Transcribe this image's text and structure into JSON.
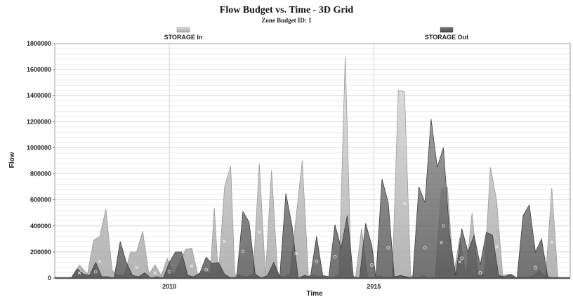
{
  "chart_data": {
    "type": "area",
    "title": "Flow Budget vs. Time - 3D Grid",
    "subtitle": "Zone Budget ID: 1",
    "xlabel": "Time",
    "ylabel": "Flow",
    "xlim": [
      2007.2,
      2019.8
    ],
    "ylim": [
      0,
      1800000
    ],
    "yticks": [
      0,
      200000,
      400000,
      600000,
      800000,
      1000000,
      1200000,
      1400000,
      1600000,
      1800000
    ],
    "xticks": [
      2010,
      2015
    ],
    "grid": true,
    "legend_placement": "top",
    "colors": {
      "storage_in": "#bdbdbd",
      "storage_out": "#5e5e5e"
    },
    "series": [
      {
        "name": "STORAGE In",
        "x": [
          2007.6,
          2007.8,
          2008.0,
          2008.15,
          2008.3,
          2008.45,
          2008.6,
          2008.75,
          2008.9,
          2009.05,
          2009.2,
          2009.35,
          2009.5,
          2009.65,
          2009.8,
          2009.95,
          2010.1,
          2010.25,
          2010.4,
          2010.55,
          2010.7,
          2010.85,
          2011.0,
          2011.1,
          2011.2,
          2011.35,
          2011.5,
          2011.6,
          2011.75,
          2011.9,
          2012.05,
          2012.2,
          2012.35,
          2012.5,
          2012.65,
          2012.8,
          2012.95,
          2013.1,
          2013.25,
          2013.4,
          2013.55,
          2013.7,
          2013.85,
          2014.0,
          2014.15,
          2014.3,
          2014.45,
          2014.55,
          2014.7,
          2014.85,
          2015.0,
          2015.15,
          2015.3,
          2015.45,
          2015.6,
          2015.75,
          2015.9,
          2016.05,
          2016.2,
          2016.35,
          2016.5,
          2016.65,
          2016.8,
          2016.95,
          2017.1,
          2017.25,
          2017.4,
          2017.55,
          2017.7,
          2017.85,
          2018.0,
          2018.15,
          2018.3,
          2018.45,
          2018.6,
          2018.75,
          2018.9,
          2019.05,
          2019.2,
          2019.35,
          2019.5,
          2019.65
        ],
        "values": [
          0,
          100000,
          30000,
          290000,
          320000,
          530000,
          60000,
          20000,
          20000,
          200000,
          200000,
          360000,
          30000,
          100000,
          20000,
          150000,
          20000,
          120000,
          220000,
          230000,
          20000,
          60000,
          30000,
          540000,
          20000,
          700000,
          860000,
          30000,
          20000,
          10000,
          30000,
          880000,
          20000,
          830000,
          20000,
          10000,
          30000,
          470000,
          900000,
          20000,
          20000,
          10000,
          0,
          0,
          30000,
          1700000,
          20000,
          0,
          380000,
          10000,
          0,
          20000,
          0,
          10000,
          1440000,
          1430000,
          20000,
          0,
          20000,
          0,
          0,
          680000,
          700000,
          20000,
          310000,
          20000,
          500000,
          20000,
          30000,
          850000,
          600000,
          20000,
          30000,
          0,
          0,
          0,
          20000,
          60000,
          10000,
          690000,
          0,
          0
        ]
      },
      {
        "name": "STORAGE Out",
        "x": [
          2007.6,
          2007.75,
          2007.9,
          2008.05,
          2008.2,
          2008.35,
          2008.5,
          2008.65,
          2008.8,
          2008.95,
          2009.1,
          2009.25,
          2009.4,
          2009.55,
          2009.7,
          2009.85,
          2010.0,
          2010.15,
          2010.3,
          2010.45,
          2010.6,
          2010.75,
          2010.9,
          2011.05,
          2011.2,
          2011.35,
          2011.5,
          2011.65,
          2011.8,
          2011.95,
          2012.1,
          2012.25,
          2012.4,
          2012.55,
          2012.7,
          2012.85,
          2013.0,
          2013.15,
          2013.3,
          2013.45,
          2013.6,
          2013.75,
          2013.9,
          2014.05,
          2014.2,
          2014.35,
          2014.5,
          2014.65,
          2014.8,
          2014.95,
          2015.05,
          2015.2,
          2015.35,
          2015.5,
          2015.65,
          2015.8,
          2015.95,
          2016.1,
          2016.25,
          2016.4,
          2016.55,
          2016.7,
          2016.85,
          2017.0,
          2017.15,
          2017.3,
          2017.45,
          2017.6,
          2017.75,
          2017.9,
          2018.05,
          2018.2,
          2018.35,
          2018.5,
          2018.65,
          2018.8,
          2018.95,
          2019.1,
          2019.25,
          2019.4,
          2019.55,
          2019.7
        ],
        "values": [
          0,
          70000,
          30000,
          20000,
          120000,
          10000,
          10000,
          0,
          280000,
          120000,
          20000,
          10000,
          40000,
          0,
          10000,
          0,
          120000,
          200000,
          200000,
          20000,
          10000,
          40000,
          160000,
          110000,
          120000,
          30000,
          0,
          10000,
          510000,
          430000,
          30000,
          0,
          20000,
          120000,
          10000,
          650000,
          400000,
          0,
          20000,
          10000,
          320000,
          20000,
          10000,
          410000,
          230000,
          480000,
          10000,
          0,
          420000,
          250000,
          0,
          760000,
          580000,
          10000,
          20000,
          10000,
          0,
          700000,
          580000,
          1220000,
          850000,
          1000000,
          340000,
          20000,
          380000,
          200000,
          330000,
          100000,
          350000,
          330000,
          20000,
          10000,
          30000,
          0,
          480000,
          560000,
          200000,
          300000,
          10000,
          0,
          0,
          0
        ]
      }
    ]
  }
}
